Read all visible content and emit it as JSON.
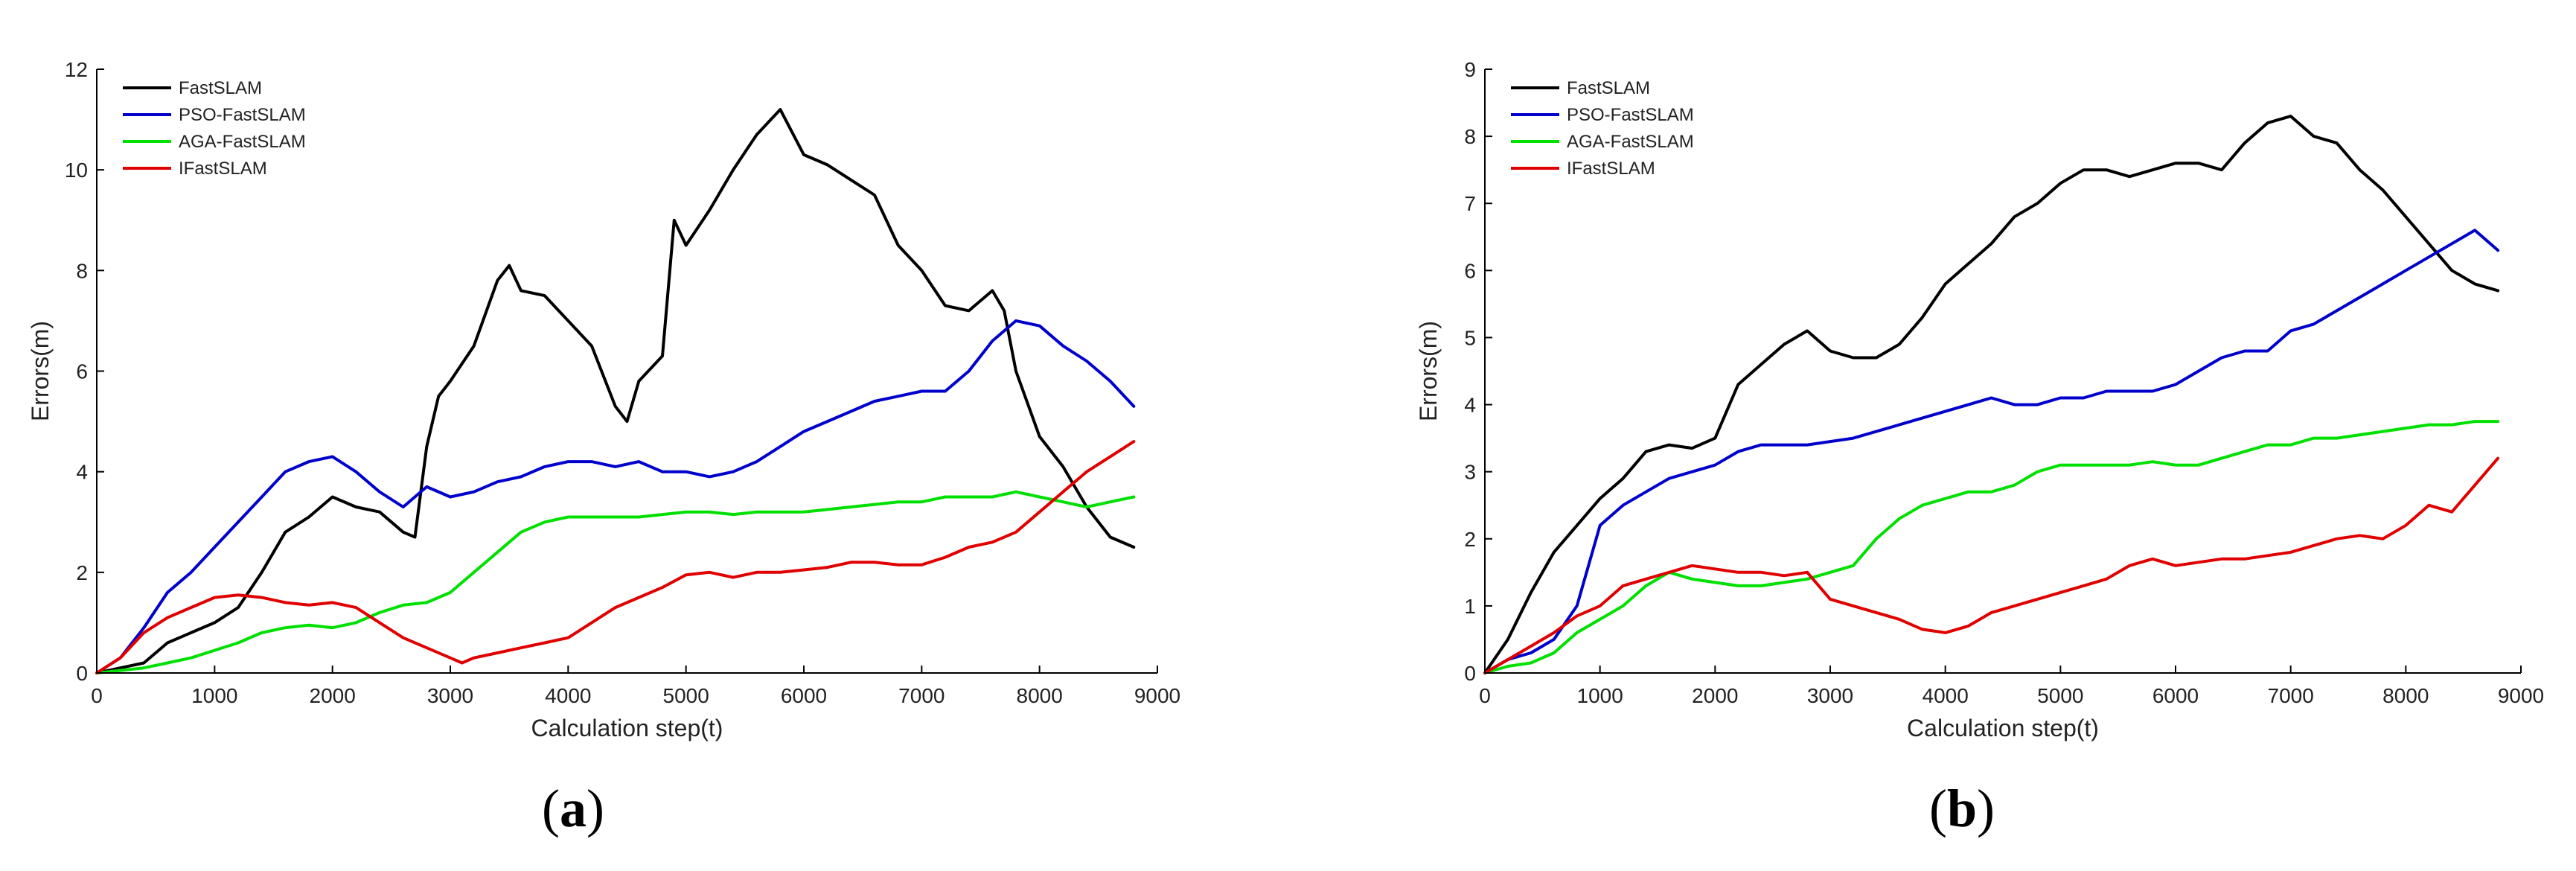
{
  "chart_data": [
    {
      "type": "line",
      "panel": "a",
      "caption": "(a)",
      "caption_parts": {
        "open": "(",
        "letter": "a",
        "close": ")"
      },
      "xlabel": "Calculation step(t)",
      "ylabel": "Errors(m)",
      "xlim": [
        0,
        9000
      ],
      "ylim": [
        0,
        12
      ],
      "xticks": [
        0,
        1000,
        2000,
        3000,
        4000,
        5000,
        6000,
        7000,
        8000,
        9000
      ],
      "yticks": [
        0,
        2,
        4,
        6,
        8,
        10,
        12
      ],
      "legend_position": "top-left",
      "series": [
        {
          "name": "FastSLAM",
          "color": "#000000",
          "x": [
            0,
            200,
            400,
            600,
            800,
            1000,
            1200,
            1400,
            1600,
            1800,
            2000,
            2200,
            2400,
            2600,
            2700,
            2800,
            2900,
            3000,
            3200,
            3400,
            3500,
            3600,
            3800,
            4000,
            4200,
            4400,
            4500,
            4600,
            4800,
            4900,
            5000,
            5200,
            5400,
            5600,
            5800,
            6000,
            6200,
            6400,
            6600,
            6800,
            7000,
            7200,
            7400,
            7600,
            7700,
            7800,
            8000,
            8200,
            8400,
            8600,
            8800
          ],
          "y": [
            0,
            0.1,
            0.2,
            0.6,
            0.8,
            1.0,
            1.3,
            2.0,
            2.8,
            3.1,
            3.5,
            3.3,
            3.2,
            2.8,
            2.7,
            4.5,
            5.5,
            5.8,
            6.5,
            7.8,
            8.1,
            7.6,
            7.5,
            7.0,
            6.5,
            5.3,
            5.0,
            5.8,
            6.3,
            9.0,
            8.5,
            9.2,
            10.0,
            10.7,
            11.2,
            10.3,
            10.1,
            9.8,
            9.5,
            8.5,
            8.0,
            7.3,
            7.2,
            7.6,
            7.2,
            6.0,
            4.7,
            4.1,
            3.3,
            2.7,
            2.5
          ]
        },
        {
          "name": "PSO-FastSLAM",
          "color": "#0000cc",
          "x": [
            0,
            200,
            400,
            600,
            800,
            1000,
            1200,
            1400,
            1600,
            1800,
            2000,
            2200,
            2400,
            2600,
            2800,
            3000,
            3200,
            3400,
            3600,
            3800,
            4000,
            4200,
            4400,
            4600,
            4800,
            5000,
            5200,
            5400,
            5600,
            5800,
            6000,
            6200,
            6400,
            6600,
            6800,
            7000,
            7200,
            7400,
            7600,
            7800,
            8000,
            8200,
            8400,
            8600,
            8800
          ],
          "y": [
            0,
            0.3,
            0.9,
            1.6,
            2.0,
            2.5,
            3.0,
            3.5,
            4.0,
            4.2,
            4.3,
            4.0,
            3.6,
            3.3,
            3.7,
            3.5,
            3.6,
            3.8,
            3.9,
            4.1,
            4.2,
            4.2,
            4.1,
            4.2,
            4.0,
            4.0,
            3.9,
            4.0,
            4.2,
            4.5,
            4.8,
            5.0,
            5.2,
            5.4,
            5.5,
            5.6,
            5.6,
            6.0,
            6.6,
            7.0,
            6.9,
            6.5,
            6.2,
            5.8,
            5.3
          ]
        },
        {
          "name": "AGA-FastSLAM",
          "color": "#00e000",
          "x": [
            0,
            200,
            400,
            600,
            800,
            1000,
            1200,
            1400,
            1600,
            1800,
            2000,
            2200,
            2400,
            2600,
            2800,
            3000,
            3200,
            3400,
            3600,
            3800,
            4000,
            4200,
            4400,
            4600,
            4800,
            5000,
            5200,
            5400,
            5600,
            5800,
            6000,
            6200,
            6400,
            6600,
            6800,
            7000,
            7200,
            7400,
            7600,
            7800,
            8000,
            8200,
            8400,
            8600,
            8800
          ],
          "y": [
            0,
            0.05,
            0.1,
            0.2,
            0.3,
            0.45,
            0.6,
            0.8,
            0.9,
            0.95,
            0.9,
            1.0,
            1.2,
            1.35,
            1.4,
            1.6,
            2.0,
            2.4,
            2.8,
            3.0,
            3.1,
            3.1,
            3.1,
            3.1,
            3.15,
            3.2,
            3.2,
            3.15,
            3.2,
            3.2,
            3.2,
            3.25,
            3.3,
            3.35,
            3.4,
            3.4,
            3.5,
            3.5,
            3.5,
            3.6,
            3.5,
            3.4,
            3.3,
            3.4,
            3.5
          ]
        },
        {
          "name": "IFastSLAM",
          "color": "#e00000",
          "x": [
            0,
            200,
            400,
            600,
            800,
            1000,
            1200,
            1400,
            1600,
            1800,
            2000,
            2200,
            2400,
            2600,
            2800,
            3000,
            3100,
            3200,
            3400,
            3600,
            3800,
            4000,
            4200,
            4400,
            4600,
            4800,
            5000,
            5200,
            5400,
            5600,
            5800,
            6000,
            6200,
            6400,
            6600,
            6800,
            7000,
            7200,
            7400,
            7600,
            7800,
            8000,
            8200,
            8400,
            8600,
            8800
          ],
          "y": [
            0,
            0.3,
            0.8,
            1.1,
            1.3,
            1.5,
            1.55,
            1.5,
            1.4,
            1.35,
            1.4,
            1.3,
            1.0,
            0.7,
            0.5,
            0.3,
            0.2,
            0.3,
            0.4,
            0.5,
            0.6,
            0.7,
            1.0,
            1.3,
            1.5,
            1.7,
            1.95,
            2.0,
            1.9,
            2.0,
            2.0,
            2.05,
            2.1,
            2.2,
            2.2,
            2.15,
            2.15,
            2.3,
            2.5,
            2.6,
            2.8,
            3.2,
            3.6,
            4.0,
            4.3,
            4.6
          ]
        }
      ]
    },
    {
      "type": "line",
      "panel": "b",
      "caption": "(b)",
      "caption_parts": {
        "open": "(",
        "letter": "b",
        "close": ")"
      },
      "xlabel": "Calculation step(t)",
      "ylabel": "Errors(m)",
      "xlim": [
        0,
        9000
      ],
      "ylim": [
        0,
        9
      ],
      "xticks": [
        0,
        1000,
        2000,
        3000,
        4000,
        5000,
        6000,
        7000,
        8000,
        9000
      ],
      "yticks": [
        0,
        1,
        2,
        3,
        4,
        5,
        6,
        7,
        8,
        9
      ],
      "legend_position": "top-left",
      "series": [
        {
          "name": "FastSLAM",
          "color": "#000000",
          "x": [
            0,
            200,
            400,
            600,
            800,
            1000,
            1200,
            1400,
            1600,
            1800,
            2000,
            2200,
            2400,
            2600,
            2800,
            3000,
            3200,
            3400,
            3600,
            3800,
            4000,
            4200,
            4400,
            4600,
            4800,
            5000,
            5200,
            5400,
            5600,
            5800,
            6000,
            6200,
            6400,
            6600,
            6800,
            7000,
            7200,
            7400,
            7600,
            7800,
            8000,
            8200,
            8400,
            8600,
            8800
          ],
          "y": [
            0,
            0.5,
            1.2,
            1.8,
            2.2,
            2.6,
            2.9,
            3.3,
            3.4,
            3.35,
            3.5,
            4.3,
            4.6,
            4.9,
            5.1,
            4.8,
            4.7,
            4.7,
            4.9,
            5.3,
            5.8,
            6.1,
            6.4,
            6.8,
            7.0,
            7.3,
            7.5,
            7.5,
            7.4,
            7.5,
            7.6,
            7.6,
            7.5,
            7.9,
            8.2,
            8.3,
            8.0,
            7.9,
            7.5,
            7.2,
            6.8,
            6.4,
            6.0,
            5.8,
            5.7
          ]
        },
        {
          "name": "PSO-FastSLAM",
          "color": "#0000cc",
          "x": [
            0,
            200,
            400,
            600,
            800,
            1000,
            1200,
            1400,
            1600,
            1800,
            2000,
            2200,
            2400,
            2600,
            2800,
            3000,
            3200,
            3400,
            3600,
            3800,
            4000,
            4200,
            4400,
            4600,
            4800,
            5000,
            5200,
            5400,
            5600,
            5800,
            6000,
            6200,
            6400,
            6600,
            6800,
            7000,
            7200,
            7400,
            7600,
            7800,
            8000,
            8200,
            8400,
            8600,
            8800
          ],
          "y": [
            0,
            0.2,
            0.3,
            0.5,
            1.0,
            2.2,
            2.5,
            2.7,
            2.9,
            3.0,
            3.1,
            3.3,
            3.4,
            3.4,
            3.4,
            3.45,
            3.5,
            3.6,
            3.7,
            3.8,
            3.9,
            4.0,
            4.1,
            4.0,
            4.0,
            4.1,
            4.1,
            4.2,
            4.2,
            4.2,
            4.3,
            4.5,
            4.7,
            4.8,
            4.8,
            5.1,
            5.2,
            5.4,
            5.6,
            5.8,
            6.0,
            6.2,
            6.4,
            6.6,
            6.3
          ]
        },
        {
          "name": "AGA-FastSLAM",
          "color": "#00e000",
          "x": [
            0,
            200,
            400,
            600,
            800,
            1000,
            1200,
            1400,
            1600,
            1800,
            2000,
            2200,
            2400,
            2600,
            2800,
            3000,
            3200,
            3400,
            3600,
            3800,
            4000,
            4200,
            4400,
            4600,
            4800,
            5000,
            5200,
            5400,
            5600,
            5800,
            6000,
            6200,
            6400,
            6600,
            6800,
            7000,
            7200,
            7400,
            7600,
            7800,
            8000,
            8200,
            8400,
            8600,
            8800
          ],
          "y": [
            0,
            0.1,
            0.15,
            0.3,
            0.6,
            0.8,
            1.0,
            1.3,
            1.5,
            1.4,
            1.35,
            1.3,
            1.3,
            1.35,
            1.4,
            1.5,
            1.6,
            2.0,
            2.3,
            2.5,
            2.6,
            2.7,
            2.7,
            2.8,
            3.0,
            3.1,
            3.1,
            3.1,
            3.1,
            3.15,
            3.1,
            3.1,
            3.2,
            3.3,
            3.4,
            3.4,
            3.5,
            3.5,
            3.55,
            3.6,
            3.65,
            3.7,
            3.7,
            3.75,
            3.75
          ]
        },
        {
          "name": "IFastSLAM",
          "color": "#e00000",
          "x": [
            0,
            200,
            400,
            600,
            800,
            1000,
            1200,
            1400,
            1600,
            1800,
            2000,
            2200,
            2400,
            2600,
            2800,
            3000,
            3200,
            3400,
            3600,
            3800,
            4000,
            4200,
            4400,
            4600,
            4800,
            5000,
            5200,
            5400,
            5600,
            5800,
            6000,
            6200,
            6400,
            6600,
            6800,
            7000,
            7200,
            7400,
            7600,
            7800,
            8000,
            8200,
            8400,
            8600,
            8800
          ],
          "y": [
            0,
            0.2,
            0.4,
            0.6,
            0.85,
            1.0,
            1.3,
            1.4,
            1.5,
            1.6,
            1.55,
            1.5,
            1.5,
            1.45,
            1.5,
            1.1,
            1.0,
            0.9,
            0.8,
            0.65,
            0.6,
            0.7,
            0.9,
            1.0,
            1.1,
            1.2,
            1.3,
            1.4,
            1.6,
            1.7,
            1.6,
            1.65,
            1.7,
            1.7,
            1.75,
            1.8,
            1.9,
            2.0,
            2.05,
            2.0,
            2.2,
            2.5,
            2.4,
            2.8,
            3.2
          ]
        }
      ]
    }
  ]
}
